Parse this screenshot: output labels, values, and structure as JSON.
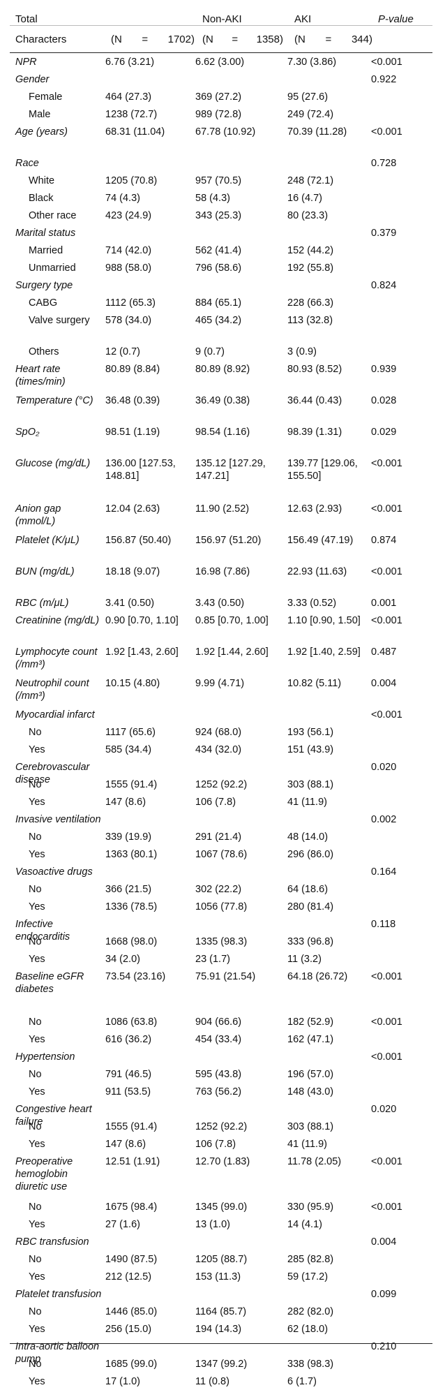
{
  "header": {
    "total": "Total",
    "characters": "Characters",
    "non_aki": "Non-AKI",
    "aki": "AKI",
    "p_value": "P-value",
    "n_total": "(N = 1702)",
    "n_nonaki": "(N = 1358)",
    "n_aki": "(N = 344)",
    "n_label": "(N",
    "eq": "=",
    "n_total_val": "1702)",
    "n_nonaki_val": "1358)",
    "n_aki_val": "344)"
  },
  "rows": [
    {
      "label": "NPR",
      "italic": true,
      "sub": false,
      "total": "6.76 (3.21)",
      "nonaki": "6.62 (3.00)",
      "aki": "7.30 (3.86)",
      "p": "<0.001",
      "h": 1
    },
    {
      "label": "Gender",
      "italic": true,
      "sub": false,
      "total": "",
      "nonaki": "",
      "aki": "",
      "p": "0.922",
      "h": 1
    },
    {
      "label": "Female",
      "italic": false,
      "sub": true,
      "total": "464 (27.3)",
      "nonaki": "369 (27.2)",
      "aki": "95 (27.6)",
      "p": "",
      "h": 1
    },
    {
      "label": "Male",
      "italic": false,
      "sub": true,
      "total": "1238 (72.7)",
      "nonaki": "989 (72.8)",
      "aki": "249 (72.4)",
      "p": "",
      "h": 1
    },
    {
      "label": "Age (years)",
      "italic": true,
      "sub": false,
      "total": "68.31 (11.04)",
      "nonaki": "67.78 (10.92)",
      "aki": "70.39 (11.28)",
      "p": "<0.001",
      "h": 2
    },
    {
      "label": "Race",
      "italic": true,
      "sub": false,
      "total": "",
      "nonaki": "",
      "aki": "",
      "p": "0.728",
      "h": 1
    },
    {
      "label": "White",
      "italic": false,
      "sub": true,
      "total": "1205 (70.8)",
      "nonaki": "957 (70.5)",
      "aki": "248 (72.1)",
      "p": "",
      "h": 1
    },
    {
      "label": "Black",
      "italic": false,
      "sub": true,
      "total": "74 (4.3)",
      "nonaki": "58 (4.3)",
      "aki": "16 (4.7)",
      "p": "",
      "h": 1
    },
    {
      "label": "Other race",
      "italic": false,
      "sub": true,
      "total": "423 (24.9)",
      "nonaki": "343 (25.3)",
      "aki": "80 (23.3)",
      "p": "",
      "h": 1
    },
    {
      "label": "Marital status",
      "italic": true,
      "sub": false,
      "total": "",
      "nonaki": "",
      "aki": "",
      "p": "0.379",
      "h": 1
    },
    {
      "label": "Married",
      "italic": false,
      "sub": true,
      "total": "714 (42.0)",
      "nonaki": "562 (41.4)",
      "aki": "152 (44.2)",
      "p": "",
      "h": 1
    },
    {
      "label": "Unmarried",
      "italic": false,
      "sub": true,
      "total": "988 (58.0)",
      "nonaki": "796 (58.6)",
      "aki": "192 (55.8)",
      "p": "",
      "h": 1
    },
    {
      "label": "Surgery type",
      "italic": true,
      "sub": false,
      "total": "",
      "nonaki": "",
      "aki": "",
      "p": "0.824",
      "h": 1
    },
    {
      "label": "CABG",
      "italic": false,
      "sub": true,
      "total": "1112 (65.3)",
      "nonaki": "884 (65.1)",
      "aki": "228 (66.3)",
      "p": "",
      "h": 1
    },
    {
      "label": "Valve surgery",
      "italic": false,
      "sub": true,
      "total": "578 (34.0)",
      "nonaki": "465 (34.2)",
      "aki": "113 (32.8)",
      "p": "",
      "h": 2
    },
    {
      "label": "Others",
      "italic": false,
      "sub": true,
      "total": "12 (0.7)",
      "nonaki": "9 (0.7)",
      "aki": "3 (0.9)",
      "p": "",
      "h": 1
    },
    {
      "label": "Heart rate (times/min)",
      "italic": true,
      "sub": false,
      "total": "80.89 (8.84)",
      "nonaki": "80.89 (8.92)",
      "aki": "80.93 (8.52)",
      "p": "0.939",
      "h": 2
    },
    {
      "label": "Temperature (°C)",
      "italic": true,
      "sub": false,
      "total": "36.48 (0.39)",
      "nonaki": "36.49 (0.38)",
      "aki": "36.44 (0.43)",
      "p": "0.028",
      "h": 2
    },
    {
      "label": "SpO₂",
      "italic": true,
      "sub": false,
      "total": "98.51 (1.19)",
      "nonaki": "98.54 (1.16)",
      "aki": "98.39 (1.31)",
      "p": "0.029",
      "h": 2
    },
    {
      "label": "Glucose (mg/dL)",
      "italic": true,
      "sub": false,
      "total": "136.00 [127.53, 148.81]",
      "nonaki": "135.12 [127.29, 147.21]",
      "aki": "139.77 [129.06, 155.50]",
      "p": "<0.001",
      "h": 3
    },
    {
      "label": "Anion gap (mmol/L)",
      "italic": true,
      "sub": false,
      "total": "12.04 (2.63)",
      "nonaki": "11.90 (2.52)",
      "aki": "12.63 (2.93)",
      "p": "<0.001",
      "h": 2
    },
    {
      "label": "Platelet (K/μL)",
      "italic": true,
      "sub": false,
      "total": "156.87 (50.40)",
      "nonaki": "156.97 (51.20)",
      "aki": "156.49 (47.19)",
      "p": "0.874",
      "h": 2
    },
    {
      "label": "BUN (mg/dL)",
      "italic": true,
      "sub": false,
      "total": "18.18 (9.07)",
      "nonaki": "16.98 (7.86)",
      "aki": "22.93 (11.63)",
      "p": "<0.001",
      "h": 2
    },
    {
      "label": "RBC (m/μL)",
      "italic": true,
      "sub": false,
      "total": "3.41 (0.50)",
      "nonaki": "3.43 (0.50)",
      "aki": "3.33 (0.52)",
      "p": "0.001",
      "h": 1
    },
    {
      "label": "Creatinine (mg/dL)",
      "italic": true,
      "sub": false,
      "total": "0.90 [0.70, 1.10]",
      "nonaki": "0.85 [0.70, 1.00]",
      "aki": "1.10 [0.90, 1.50]",
      "p": "<0.001",
      "h": 2
    },
    {
      "label": "Lymphocyte count (/mm³)",
      "italic": true,
      "sub": false,
      "total": "1.92 [1.43, 2.60]",
      "nonaki": "1.92 [1.44, 2.60]",
      "aki": "1.92 [1.40, 2.59]",
      "p": "0.487",
      "h": 2
    },
    {
      "label": "Neutrophil count (/mm³)",
      "italic": true,
      "sub": false,
      "total": "10.15 (4.80)",
      "nonaki": "9.99 (4.71)",
      "aki": "10.82 (5.11)",
      "p": "0.004",
      "h": 2
    },
    {
      "label": "Myocardial infarct",
      "italic": true,
      "sub": false,
      "total": "",
      "nonaki": "",
      "aki": "",
      "p": "<0.001",
      "h": 1
    },
    {
      "label": "No",
      "italic": false,
      "sub": true,
      "total": "1117 (65.6)",
      "nonaki": "924 (68.0)",
      "aki": "193 (56.1)",
      "p": "",
      "h": 1
    },
    {
      "label": "Yes",
      "italic": false,
      "sub": true,
      "total": "585 (34.4)",
      "nonaki": "434 (32.0)",
      "aki": "151 (43.9)",
      "p": "",
      "h": 1
    },
    {
      "label": "Cerebrovascular disease",
      "italic": true,
      "sub": false,
      "total": "",
      "nonaki": "",
      "aki": "",
      "p": "0.020",
      "h": 1
    },
    {
      "label": "No",
      "italic": false,
      "sub": true,
      "total": "1555 (91.4)",
      "nonaki": "1252 (92.2)",
      "aki": "303 (88.1)",
      "p": "",
      "h": 1
    },
    {
      "label": "Yes",
      "italic": false,
      "sub": true,
      "total": "147 (8.6)",
      "nonaki": "106 (7.8)",
      "aki": "41 (11.9)",
      "p": "",
      "h": 1
    },
    {
      "label": "Invasive ventilation",
      "italic": true,
      "sub": false,
      "total": "",
      "nonaki": "",
      "aki": "",
      "p": "0.002",
      "h": 1
    },
    {
      "label": "No",
      "italic": false,
      "sub": true,
      "total": "339 (19.9)",
      "nonaki": "291 (21.4)",
      "aki": "48 (14.0)",
      "p": "",
      "h": 1
    },
    {
      "label": "Yes",
      "italic": false,
      "sub": true,
      "total": "1363 (80.1)",
      "nonaki": "1067 (78.6)",
      "aki": "296 (86.0)",
      "p": "",
      "h": 1
    },
    {
      "label": "Vasoactive drugs",
      "italic": true,
      "sub": false,
      "total": "",
      "nonaki": "",
      "aki": "",
      "p": "0.164",
      "h": 1
    },
    {
      "label": "No",
      "italic": false,
      "sub": true,
      "total": "366 (21.5)",
      "nonaki": "302 (22.2)",
      "aki": "64 (18.6)",
      "p": "",
      "h": 1
    },
    {
      "label": "Yes",
      "italic": false,
      "sub": true,
      "total": "1336 (78.5)",
      "nonaki": "1056 (77.8)",
      "aki": "280 (81.4)",
      "p": "",
      "h": 1
    },
    {
      "label": "Infective endocarditis",
      "italic": true,
      "sub": false,
      "total": "",
      "nonaki": "",
      "aki": "",
      "p": "0.118",
      "h": 1
    },
    {
      "label": "No",
      "italic": false,
      "sub": true,
      "total": "1668 (98.0)",
      "nonaki": "1335 (98.3)",
      "aki": "333 (96.8)",
      "p": "",
      "h": 1
    },
    {
      "label": "Yes",
      "italic": false,
      "sub": true,
      "total": "34 (2.0)",
      "nonaki": "23 (1.7)",
      "aki": "11 (3.2)",
      "p": "",
      "h": 1
    },
    {
      "label": "Baseline eGFR diabetes",
      "italic": true,
      "sub": false,
      "total": "73.54 (23.16)",
      "nonaki": "75.91 (21.54)",
      "aki": "64.18 (26.72)",
      "p": "<0.001",
      "h": 3
    },
    {
      "label": "No",
      "italic": false,
      "sub": true,
      "total": "1086 (63.8)",
      "nonaki": "904 (66.6)",
      "aki": "182 (52.9)",
      "p": "<0.001",
      "h": 1
    },
    {
      "label": "Yes",
      "italic": false,
      "sub": true,
      "total": "616 (36.2)",
      "nonaki": "454 (33.4)",
      "aki": "162 (47.1)",
      "p": "",
      "h": 1
    },
    {
      "label": "Hypertension",
      "italic": true,
      "sub": false,
      "total": "",
      "nonaki": "",
      "aki": "",
      "p": "<0.001",
      "h": 1
    },
    {
      "label": "No",
      "italic": false,
      "sub": true,
      "total": "791 (46.5)",
      "nonaki": "595 (43.8)",
      "aki": "196 (57.0)",
      "p": "",
      "h": 1
    },
    {
      "label": "Yes",
      "italic": false,
      "sub": true,
      "total": "911 (53.5)",
      "nonaki": "763 (56.2)",
      "aki": "148 (43.0)",
      "p": "",
      "h": 1
    },
    {
      "label": "Congestive heart failure",
      "italic": true,
      "sub": false,
      "total": "",
      "nonaki": "",
      "aki": "",
      "p": "0.020",
      "h": 1
    },
    {
      "label": "No",
      "italic": false,
      "sub": true,
      "total": "1555 (91.4)",
      "nonaki": "1252 (92.2)",
      "aki": "303 (88.1)",
      "p": "",
      "h": 1
    },
    {
      "label": "Yes",
      "italic": false,
      "sub": true,
      "total": "147 (8.6)",
      "nonaki": "106 (7.8)",
      "aki": "41 (11.9)",
      "p": "",
      "h": 1
    },
    {
      "label": "Preoperative hemoglobin diuretic use",
      "italic": true,
      "sub": false,
      "total": "12.51 (1.91)",
      "nonaki": "12.70 (1.83)",
      "aki": "11.78 (2.05)",
      "p": "<0.001",
      "h": 3
    },
    {
      "label": "No",
      "italic": false,
      "sub": true,
      "total": "1675 (98.4)",
      "nonaki": "1345 (99.0)",
      "aki": "330 (95.9)",
      "p": "<0.001",
      "h": 1
    },
    {
      "label": "Yes",
      "italic": false,
      "sub": true,
      "total": "27 (1.6)",
      "nonaki": "13 (1.0)",
      "aki": "14 (4.1)",
      "p": "",
      "h": 1
    },
    {
      "label": "RBC transfusion",
      "italic": true,
      "sub": false,
      "total": "",
      "nonaki": "",
      "aki": "",
      "p": "0.004",
      "h": 1
    },
    {
      "label": "No",
      "italic": false,
      "sub": true,
      "total": "1490 (87.5)",
      "nonaki": "1205 (88.7)",
      "aki": "285 (82.8)",
      "p": "",
      "h": 1
    },
    {
      "label": "Yes",
      "italic": false,
      "sub": true,
      "total": "212 (12.5)",
      "nonaki": "153 (11.3)",
      "aki": "59 (17.2)",
      "p": "",
      "h": 1
    },
    {
      "label": "Platelet transfusion",
      "italic": true,
      "sub": false,
      "total": "",
      "nonaki": "",
      "aki": "",
      "p": "0.099",
      "h": 1
    },
    {
      "label": "No",
      "italic": false,
      "sub": true,
      "total": "1446 (85.0)",
      "nonaki": "1164 (85.7)",
      "aki": "282 (82.0)",
      "p": "",
      "h": 1
    },
    {
      "label": "Yes",
      "italic": false,
      "sub": true,
      "total": "256 (15.0)",
      "nonaki": "194 (14.3)",
      "aki": "62 (18.0)",
      "p": "",
      "h": 1
    },
    {
      "label": "Intra-aortic balloon pump",
      "italic": true,
      "sub": false,
      "total": "",
      "nonaki": "",
      "aki": "",
      "p": "0.210",
      "h": 1
    },
    {
      "label": "No",
      "italic": false,
      "sub": true,
      "total": "1685 (99.0)",
      "nonaki": "1347 (99.2)",
      "aki": "338 (98.3)",
      "p": "",
      "h": 1
    },
    {
      "label": "Yes",
      "italic": false,
      "sub": true,
      "total": "17 (1.0)",
      "nonaki": "11 (0.8)",
      "aki": "6 (1.7)",
      "p": "",
      "h": 1
    }
  ]
}
